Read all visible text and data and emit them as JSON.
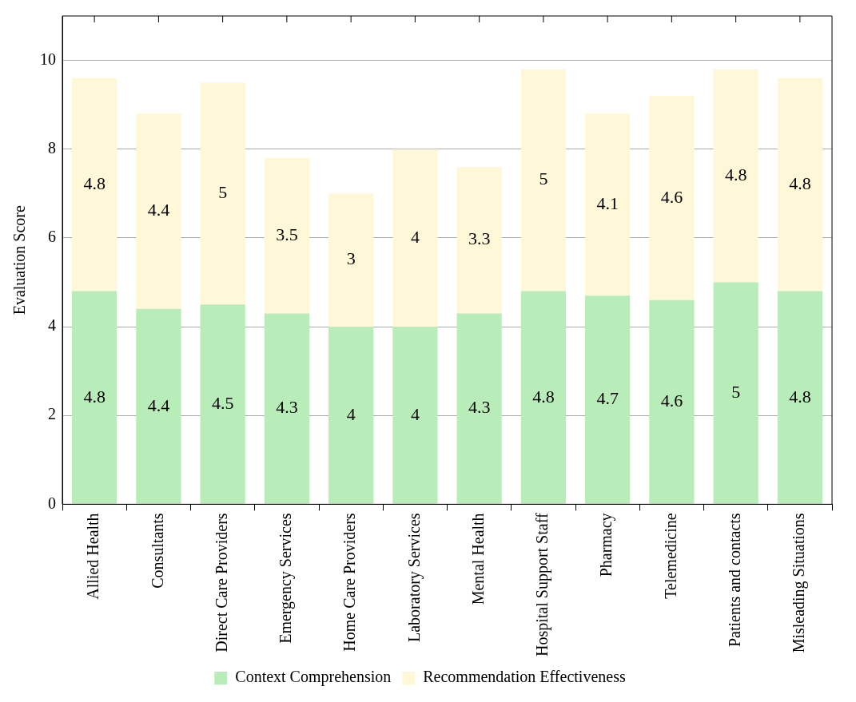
{
  "chart_data": {
    "type": "bar",
    "stacked": true,
    "ylabel": "Evaluation Score",
    "categories": [
      "Allied Health",
      "Consultants",
      "Direct Care Providers",
      "Emergency Services",
      "Home Care Providers",
      "Laboratory Services",
      "Mental Health",
      "Hospital Support Staff",
      "Pharmacy",
      "Telemedicine",
      "Patients and contacts",
      "Misleading Situations"
    ],
    "series": [
      {
        "name": "Context Comprehension",
        "color": "#b8ecb8",
        "values": [
          4.8,
          4.4,
          4.5,
          4.3,
          4,
          4,
          4.3,
          4.8,
          4.7,
          4.6,
          5,
          4.8
        ]
      },
      {
        "name": "Recommendation Effectiveness",
        "color": "#fff8d8",
        "values": [
          4.8,
          4.4,
          5,
          3.5,
          3,
          4,
          3.3,
          5,
          4.1,
          4.6,
          4.8,
          4.8
        ]
      }
    ],
    "ylim": [
      0,
      11
    ],
    "yticks": [
      0,
      2,
      4,
      6,
      8,
      10
    ],
    "grid": "y",
    "legend": "bottom",
    "data_labels": true
  }
}
